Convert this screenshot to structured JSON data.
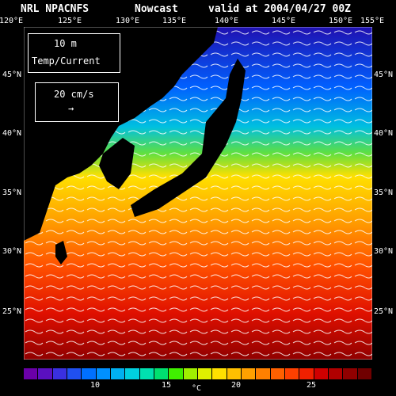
{
  "header": {
    "source": "NRL NPACNFS",
    "mode": "Nowcast",
    "valid": "valid at 2004/04/27 00Z"
  },
  "lon_labels": [
    "120°E",
    "125°E",
    "130°E",
    "135°E",
    "140°E",
    "145°E",
    "150°E",
    "155°E"
  ],
  "lat_labels": [
    "45°N",
    "40°N",
    "35°N",
    "30°N",
    "25°N"
  ],
  "legend": {
    "depth": "10  m",
    "field": "Temp/Current",
    "speed": "20 cm/s",
    "arrow_glyph": "→"
  },
  "colorbar": {
    "ticks": [
      "10",
      "15",
      "20",
      "25"
    ],
    "unit": "°C",
    "colors": [
      "#6a00a8",
      "#5a10c0",
      "#3a30e0",
      "#2050f0",
      "#0070ff",
      "#0090ff",
      "#00b0f0",
      "#00d0e0",
      "#00e0b0",
      "#00e070",
      "#40f000",
      "#a0f000",
      "#e0f000",
      "#ffe000",
      "#ffc000",
      "#ffa000",
      "#ff8000",
      "#ff6000",
      "#ff4000",
      "#f02000",
      "#d00000",
      "#b00000",
      "#900000",
      "#700000"
    ]
  },
  "map_colors": {
    "land": "#000000",
    "cold": "#1020c0",
    "cool": "#00b0ff",
    "mid": "#40e060",
    "warm": "#ffd000",
    "hot": "#ff6000",
    "tropic": "#c00000"
  }
}
